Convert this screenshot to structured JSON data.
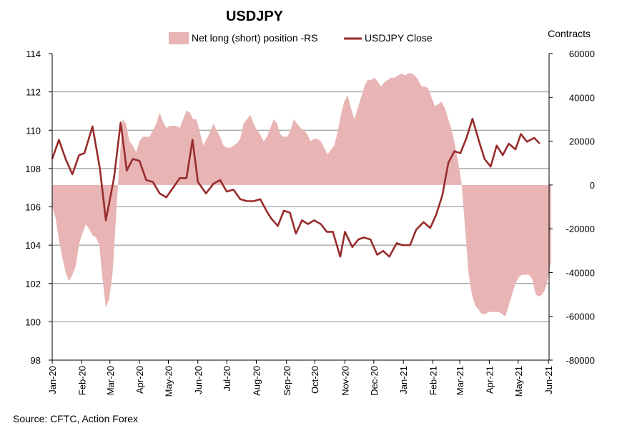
{
  "chart_data": {
    "type": "area+line",
    "title": "USDJPY",
    "source": "Source: CFTC, Action Forex",
    "y2label": "Contracts",
    "legend": {
      "area_label": "Net long (short) position -RS",
      "line_label": "USDJPY Close",
      "placement": "top-center"
    },
    "colors": {
      "area": "#e8b4b4",
      "line": "#982c2c",
      "grid": "#888888",
      "axis": "#000000"
    },
    "y_left": {
      "min": 98,
      "max": 114,
      "ticks": [
        "114",
        "112",
        "110",
        "108",
        "106",
        "104",
        "102",
        "100",
        "98"
      ]
    },
    "y_right": {
      "min": -80000,
      "max": 60000,
      "ticks": [
        "60000",
        "40000",
        "20000",
        "0",
        "-20000",
        "-40000",
        "-60000",
        "-80000"
      ]
    },
    "x_ticks": [
      "Jan-20",
      "Feb-20",
      "Mar-20",
      "Apr-20",
      "May-20",
      "Jun-20",
      "Jul-20",
      "Aug-20",
      "Sep-20",
      "Oct-20",
      "Nov-20",
      "Dec-20",
      "Jan-21",
      "Feb-21",
      "Mar-21",
      "Apr-21",
      "May-21",
      "Jun-21"
    ],
    "x_range_weeks": [
      0,
      74
    ],
    "tick_weeks": [
      0,
      4.4,
      8.6,
      13,
      17.3,
      21.7,
      26,
      30.4,
      34.9,
      39.1,
      43.6,
      47.9,
      52.3,
      56.7,
      60.7,
      65.1,
      69.4,
      73.9
    ],
    "net_position": [
      [
        0,
        -10000
      ],
      [
        0.5,
        -15000
      ],
      [
        1,
        -25000
      ],
      [
        1.5,
        -33000
      ],
      [
        2,
        -40000
      ],
      [
        2.5,
        -44000
      ],
      [
        3,
        -41000
      ],
      [
        3.5,
        -37000
      ],
      [
        4,
        -27000
      ],
      [
        4.5,
        -22000
      ],
      [
        5,
        -18000
      ],
      [
        5.5,
        -20000
      ],
      [
        6,
        -23000
      ],
      [
        6.5,
        -24000
      ],
      [
        7,
        -27000
      ],
      [
        7.5,
        -43000
      ],
      [
        8,
        -56000
      ],
      [
        8.5,
        -52000
      ],
      [
        9,
        -40000
      ],
      [
        9.5,
        -15000
      ],
      [
        10,
        10000
      ],
      [
        10.5,
        30000
      ],
      [
        11,
        28000
      ],
      [
        11.5,
        20000
      ],
      [
        12,
        18000
      ],
      [
        12.5,
        15000
      ],
      [
        13,
        20000
      ],
      [
        13.5,
        22000
      ],
      [
        14,
        22000
      ],
      [
        14.5,
        22000
      ],
      [
        15,
        25000
      ],
      [
        15.5,
        28000
      ],
      [
        16,
        33000
      ],
      [
        16.5,
        29000
      ],
      [
        17,
        26000
      ],
      [
        17.5,
        27000
      ],
      [
        18,
        27000
      ],
      [
        18.5,
        27000
      ],
      [
        19,
        26000
      ],
      [
        19.5,
        30000
      ],
      [
        20,
        34000
      ],
      [
        20.5,
        33000
      ],
      [
        21,
        30000
      ],
      [
        21.5,
        30000
      ],
      [
        22,
        24000
      ],
      [
        22.5,
        18000
      ],
      [
        23,
        21000
      ],
      [
        23.5,
        24000
      ],
      [
        24,
        28000
      ],
      [
        24.5,
        25000
      ],
      [
        25,
        22000
      ],
      [
        25.5,
        18000
      ],
      [
        26,
        17000
      ],
      [
        26.5,
        17000
      ],
      [
        27,
        18000
      ],
      [
        27.5,
        19000
      ],
      [
        28,
        21000
      ],
      [
        28.5,
        28000
      ],
      [
        29,
        30000
      ],
      [
        29.5,
        32000
      ],
      [
        30,
        28000
      ],
      [
        30.5,
        25000
      ],
      [
        31,
        23000
      ],
      [
        31.5,
        20000
      ],
      [
        32,
        22000
      ],
      [
        32.5,
        26000
      ],
      [
        33,
        30000
      ],
      [
        33.5,
        28000
      ],
      [
        34,
        23000
      ],
      [
        34.5,
        22000
      ],
      [
        35,
        22000
      ],
      [
        35.5,
        25000
      ],
      [
        36,
        30000
      ],
      [
        36.5,
        28000
      ],
      [
        37,
        26000
      ],
      [
        37.5,
        25000
      ],
      [
        38,
        23000
      ],
      [
        38.5,
        20000
      ],
      [
        39,
        21000
      ],
      [
        39.5,
        21000
      ],
      [
        40,
        20000
      ],
      [
        40.5,
        17000
      ],
      [
        41,
        14000
      ],
      [
        41.5,
        16000
      ],
      [
        42,
        18000
      ],
      [
        42.5,
        24000
      ],
      [
        43,
        32000
      ],
      [
        43.5,
        38000
      ],
      [
        44,
        41000
      ],
      [
        44.5,
        35000
      ],
      [
        45,
        30000
      ],
      [
        45.5,
        35000
      ],
      [
        46,
        40000
      ],
      [
        46.5,
        45000
      ],
      [
        47,
        48000
      ],
      [
        47.5,
        48000
      ],
      [
        48,
        49000
      ],
      [
        48.5,
        47000
      ],
      [
        49,
        45000
      ],
      [
        49.5,
        47000
      ],
      [
        50,
        48000
      ],
      [
        50.5,
        49000
      ],
      [
        51,
        49000
      ],
      [
        51.5,
        50000
      ],
      [
        52,
        51000
      ],
      [
        52.5,
        50000
      ],
      [
        53,
        51000
      ],
      [
        53.5,
        51000
      ],
      [
        54,
        50000
      ],
      [
        54.5,
        48000
      ],
      [
        55,
        45000
      ],
      [
        55.5,
        45000
      ],
      [
        56,
        44000
      ],
      [
        56.5,
        40000
      ],
      [
        57,
        36000
      ],
      [
        57.5,
        37000
      ],
      [
        58,
        38000
      ],
      [
        58.5,
        35000
      ],
      [
        59,
        30000
      ],
      [
        59.5,
        25000
      ],
      [
        60,
        18000
      ],
      [
        60.5,
        10000
      ],
      [
        61,
        0
      ],
      [
        61.5,
        -20000
      ],
      [
        62,
        -40000
      ],
      [
        62.5,
        -50000
      ],
      [
        63,
        -55000
      ],
      [
        63.5,
        -57000
      ],
      [
        64,
        -59000
      ],
      [
        64.5,
        -59000
      ],
      [
        65,
        -58000
      ],
      [
        65.5,
        -58000
      ],
      [
        66,
        -58000
      ],
      [
        66.5,
        -58000
      ],
      [
        67,
        -59000
      ],
      [
        67.5,
        -60000
      ],
      [
        68,
        -55000
      ],
      [
        68.5,
        -50000
      ],
      [
        69,
        -45000
      ],
      [
        69.5,
        -42000
      ],
      [
        70,
        -41000
      ],
      [
        70.5,
        -41000
      ],
      [
        71,
        -41000
      ],
      [
        71.5,
        -43000
      ],
      [
        72,
        -50000
      ],
      [
        72.5,
        -51000
      ],
      [
        73,
        -50000
      ],
      [
        73.5,
        -47000
      ],
      [
        74,
        -40000
      ],
      [
        74.3,
        -35000
      ]
    ],
    "usdjpy_close": [
      [
        0,
        108.5
      ],
      [
        1,
        109.5
      ],
      [
        2,
        108.5
      ],
      [
        3,
        107.7
      ],
      [
        4,
        108.7
      ],
      [
        4.8,
        108.8
      ],
      [
        6,
        110.2
      ],
      [
        7.1,
        108
      ],
      [
        8,
        105.3
      ],
      [
        9.2,
        107.5
      ],
      [
        10.2,
        110.4
      ],
      [
        11.1,
        107.9
      ],
      [
        12,
        108.5
      ],
      [
        13,
        108.4
      ],
      [
        14,
        107.4
      ],
      [
        15,
        107.3
      ],
      [
        16,
        106.7
      ],
      [
        17,
        106.5
      ],
      [
        18,
        107
      ],
      [
        19,
        107.5
      ],
      [
        20,
        107.5
      ],
      [
        20.9,
        109.5
      ],
      [
        21.7,
        107.3
      ],
      [
        22.9,
        106.7
      ],
      [
        24,
        107.2
      ],
      [
        25,
        107.4
      ],
      [
        26,
        106.8
      ],
      [
        27,
        106.9
      ],
      [
        28,
        106.4
      ],
      [
        29,
        106.3
      ],
      [
        30,
        106.3
      ],
      [
        31,
        106.4
      ],
      [
        31.9,
        105.8
      ],
      [
        32.6,
        105.4
      ],
      [
        33.6,
        105
      ],
      [
        34.5,
        105.8
      ],
      [
        35.4,
        105.7
      ],
      [
        36.3,
        104.6
      ],
      [
        37.2,
        105.3
      ],
      [
        38.1,
        105.1
      ],
      [
        39,
        105.3
      ],
      [
        40,
        105.1
      ],
      [
        40.9,
        104.7
      ],
      [
        41.8,
        104.7
      ],
      [
        42.9,
        103.4
      ],
      [
        43.6,
        104.7
      ],
      [
        44.7,
        103.9
      ],
      [
        45.6,
        104.3
      ],
      [
        46.4,
        104.4
      ],
      [
        47.4,
        104.3
      ],
      [
        48.4,
        103.5
      ],
      [
        49.3,
        103.7
      ],
      [
        50.2,
        103.4
      ],
      [
        51.3,
        104.1
      ],
      [
        52.2,
        104
      ],
      [
        53.3,
        104
      ],
      [
        54.2,
        104.8
      ],
      [
        55.3,
        105.2
      ],
      [
        56.3,
        104.9
      ],
      [
        57.2,
        105.6
      ],
      [
        58.1,
        106.6
      ],
      [
        59,
        108.3
      ],
      [
        59.9,
        108.9
      ],
      [
        60.8,
        108.8
      ],
      [
        61.7,
        109.6
      ],
      [
        62.6,
        110.6
      ],
      [
        63.5,
        109.5
      ],
      [
        64.4,
        108.5
      ],
      [
        65.3,
        108.1
      ],
      [
        66.2,
        109.2
      ],
      [
        67.1,
        108.7
      ],
      [
        68,
        109.3
      ],
      [
        69,
        109
      ],
      [
        69.8,
        109.8
      ],
      [
        70.7,
        109.4
      ],
      [
        71.8,
        109.6
      ],
      [
        72.6,
        109.3
      ]
    ]
  }
}
